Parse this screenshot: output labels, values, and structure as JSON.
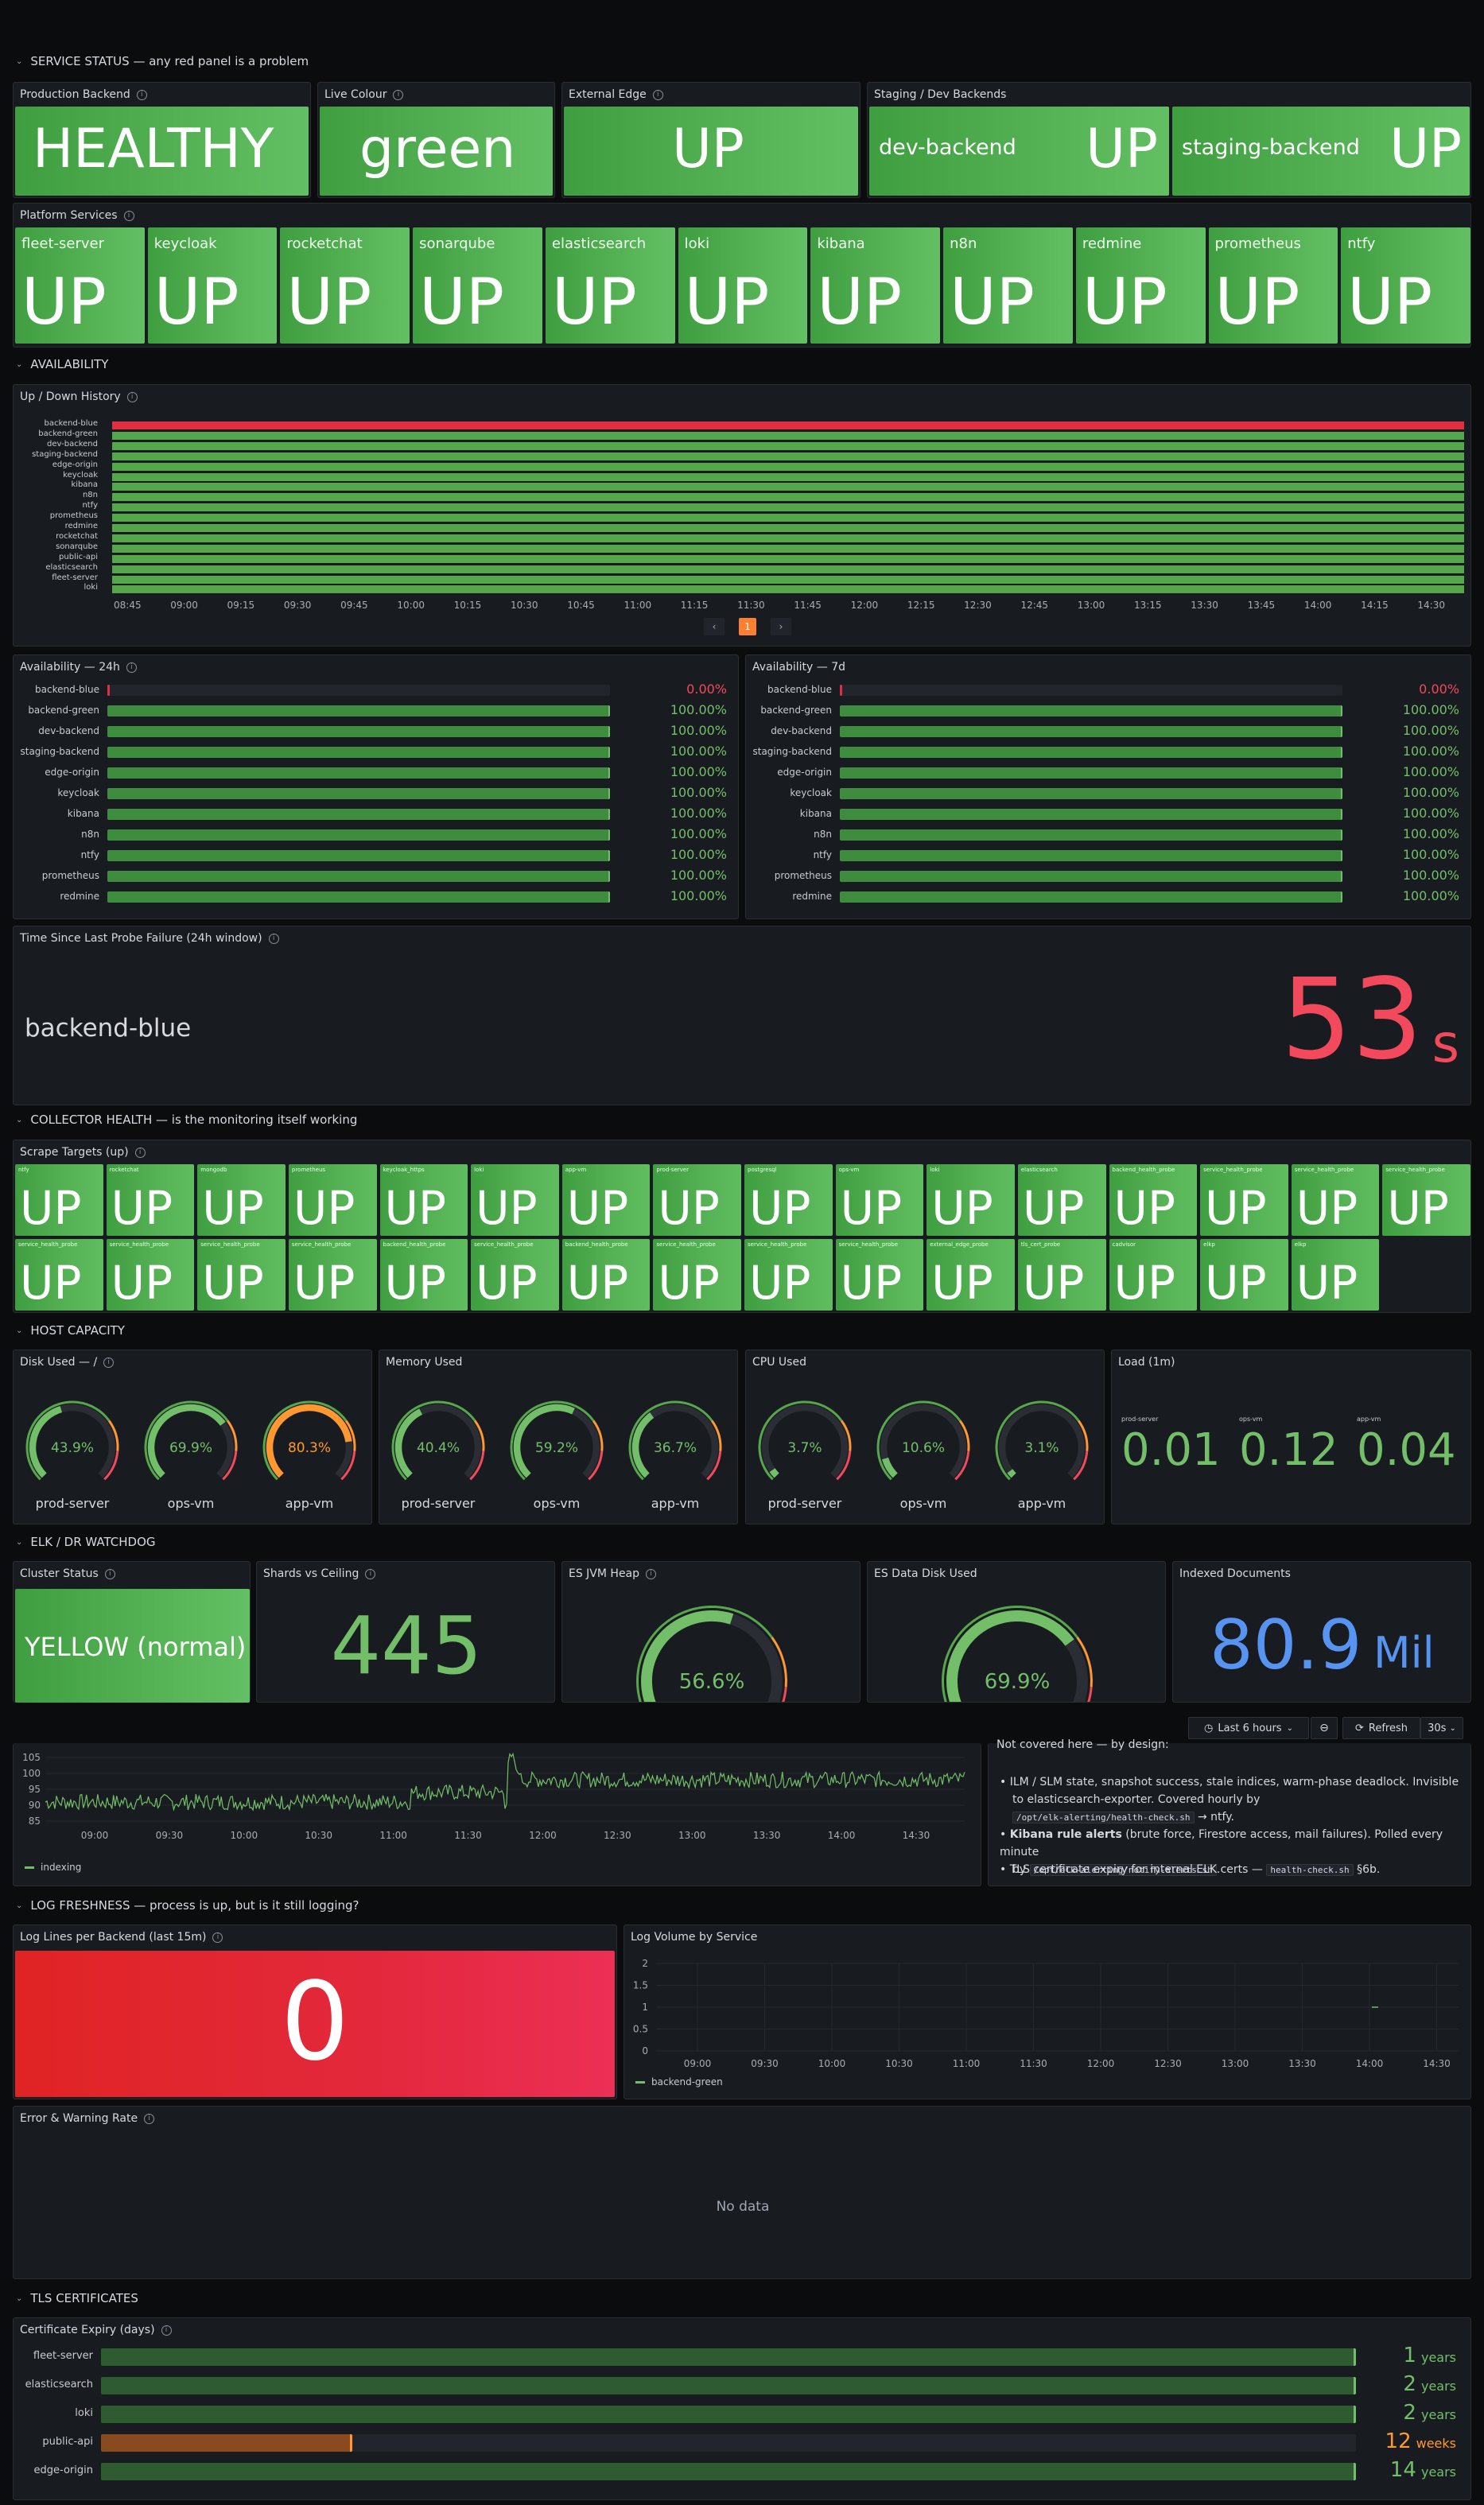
{
  "colors": {
    "green": "#56a64b",
    "red": "#e02f44",
    "orange": "#ff9830",
    "blue": "#5794f2",
    "panel": "#181b1f",
    "bg": "#0b0c0e"
  },
  "rows": {
    "service": "SERVICE STATUS — any red panel is a problem",
    "availability": "AVAILABILITY",
    "collector": "COLLECTOR HEALTH — is the monitoring itself working",
    "host": "HOST CAPACITY",
    "elk": "ELK / DR WATCHDOG",
    "log": "LOG FRESHNESS — process is up, but is it still logging?",
    "tls": "TLS CERTIFICATES"
  },
  "service": {
    "prod_title": "Production Backend",
    "prod_value": "HEALTHY",
    "live_title": "Live Colour",
    "live_value": "green",
    "edge_title": "External Edge",
    "edge_value": "UP",
    "staging_title": "Staging / Dev Backends",
    "staging": [
      {
        "name": "dev-backend",
        "value": "UP"
      },
      {
        "name": "staging-backend",
        "value": "UP"
      }
    ],
    "platform_title": "Platform Services",
    "platform": [
      {
        "name": "fleet-server",
        "value": "UP"
      },
      {
        "name": "keycloak",
        "value": "UP"
      },
      {
        "name": "rocketchat",
        "value": "UP"
      },
      {
        "name": "sonarqube",
        "value": "UP"
      },
      {
        "name": "elasticsearch",
        "value": "UP"
      },
      {
        "name": "loki",
        "value": "UP"
      },
      {
        "name": "kibana",
        "value": "UP"
      },
      {
        "name": "n8n",
        "value": "UP"
      },
      {
        "name": "redmine",
        "value": "UP"
      },
      {
        "name": "prometheus",
        "value": "UP"
      },
      {
        "name": "ntfy",
        "value": "UP"
      }
    ]
  },
  "updown": {
    "title": "Up / Down History",
    "series": [
      "backend-blue",
      "backend-green",
      "dev-backend",
      "staging-backend",
      "edge-origin",
      "keycloak",
      "kibana",
      "n8n",
      "ntfy",
      "prometheus",
      "redmine",
      "rocketchat",
      "sonarqube",
      "public-api",
      "elasticsearch",
      "fleet-server",
      "loki"
    ],
    "states": [
      "down",
      "up",
      "up",
      "up",
      "up",
      "up",
      "up",
      "up",
      "up",
      "up",
      "up",
      "up",
      "up",
      "up",
      "up",
      "up",
      "up"
    ],
    "times": [
      "08:45",
      "09:00",
      "09:15",
      "09:30",
      "09:45",
      "10:00",
      "10:15",
      "10:30",
      "10:45",
      "11:00",
      "11:15",
      "11:30",
      "11:45",
      "12:00",
      "12:15",
      "12:30",
      "12:45",
      "13:00",
      "13:15",
      "13:30",
      "13:45",
      "14:00",
      "14:15",
      "14:30"
    ],
    "page_prev": "‹",
    "page": "1",
    "page_next": "›"
  },
  "avail24": {
    "title": "Availability — 24h",
    "items": [
      {
        "name": "backend-blue",
        "value": "0.00%",
        "pct": 0
      },
      {
        "name": "backend-green",
        "value": "100.00%",
        "pct": 100
      },
      {
        "name": "dev-backend",
        "value": "100.00%",
        "pct": 100
      },
      {
        "name": "staging-backend",
        "value": "100.00%",
        "pct": 100
      },
      {
        "name": "edge-origin",
        "value": "100.00%",
        "pct": 100
      },
      {
        "name": "keycloak",
        "value": "100.00%",
        "pct": 100
      },
      {
        "name": "kibana",
        "value": "100.00%",
        "pct": 100
      },
      {
        "name": "n8n",
        "value": "100.00%",
        "pct": 100
      },
      {
        "name": "ntfy",
        "value": "100.00%",
        "pct": 100
      },
      {
        "name": "prometheus",
        "value": "100.00%",
        "pct": 100
      },
      {
        "name": "redmine",
        "value": "100.00%",
        "pct": 100
      }
    ]
  },
  "avail7": {
    "title": "Availability — 7d",
    "items": [
      {
        "name": "backend-blue",
        "value": "0.00%",
        "pct": 0
      },
      {
        "name": "backend-green",
        "value": "100.00%",
        "pct": 100
      },
      {
        "name": "dev-backend",
        "value": "100.00%",
        "pct": 100
      },
      {
        "name": "staging-backend",
        "value": "100.00%",
        "pct": 100
      },
      {
        "name": "edge-origin",
        "value": "100.00%",
        "pct": 100
      },
      {
        "name": "keycloak",
        "value": "100.00%",
        "pct": 100
      },
      {
        "name": "kibana",
        "value": "100.00%",
        "pct": 100
      },
      {
        "name": "n8n",
        "value": "100.00%",
        "pct": 100
      },
      {
        "name": "ntfy",
        "value": "100.00%",
        "pct": 100
      },
      {
        "name": "prometheus",
        "value": "100.00%",
        "pct": 100
      },
      {
        "name": "redmine",
        "value": "100.00%",
        "pct": 100
      }
    ]
  },
  "probe": {
    "title": "Time Since Last Probe Failure (24h window)",
    "name": "backend-blue",
    "value": "53",
    "unit": "s"
  },
  "scrape": {
    "title": "Scrape Targets (up)",
    "items": [
      {
        "name": "ntfy",
        "value": "UP"
      },
      {
        "name": "rocketchat",
        "value": "UP"
      },
      {
        "name": "mongodb",
        "value": "UP"
      },
      {
        "name": "prometheus",
        "value": "UP"
      },
      {
        "name": "keycloak_https",
        "value": "UP"
      },
      {
        "name": "loki",
        "value": "UP"
      },
      {
        "name": "app-vm",
        "value": "UP"
      },
      {
        "name": "prod-server",
        "value": "UP"
      },
      {
        "name": "postgresql",
        "value": "UP"
      },
      {
        "name": "ops-vm",
        "value": "UP"
      },
      {
        "name": "loki",
        "value": "UP"
      },
      {
        "name": "elasticsearch",
        "value": "UP"
      },
      {
        "name": "backend_health_probe",
        "value": "UP"
      },
      {
        "name": "service_health_probe",
        "value": "UP"
      },
      {
        "name": "service_health_probe",
        "value": "UP"
      },
      {
        "name": "service_health_probe",
        "value": "UP"
      },
      {
        "name": "service_health_probe",
        "value": "UP"
      },
      {
        "name": "service_health_probe",
        "value": "UP"
      },
      {
        "name": "service_health_probe",
        "value": "UP"
      },
      {
        "name": "service_health_probe",
        "value": "UP"
      },
      {
        "name": "backend_health_probe",
        "value": "UP"
      },
      {
        "name": "service_health_probe",
        "value": "UP"
      },
      {
        "name": "backend_health_probe",
        "value": "UP"
      },
      {
        "name": "service_health_probe",
        "value": "UP"
      },
      {
        "name": "service_health_probe",
        "value": "UP"
      },
      {
        "name": "service_health_probe",
        "value": "UP"
      },
      {
        "name": "external_edge_probe",
        "value": "UP"
      },
      {
        "name": "tls_cert_probe",
        "value": "UP"
      },
      {
        "name": "cadvisor",
        "value": "UP"
      },
      {
        "name": "elkp",
        "value": "UP"
      },
      {
        "name": "elkp",
        "value": "UP"
      }
    ]
  },
  "host": {
    "disk": {
      "title": "Disk Used — /",
      "gauges": [
        {
          "name": "prod-server",
          "value": "43.9%",
          "pct": 43.9
        },
        {
          "name": "ops-vm",
          "value": "69.9%",
          "pct": 69.9
        },
        {
          "name": "app-vm",
          "value": "80.3%",
          "pct": 80.3
        }
      ]
    },
    "mem": {
      "title": "Memory Used",
      "gauges": [
        {
          "name": "prod-server",
          "value": "40.4%",
          "pct": 40.4
        },
        {
          "name": "ops-vm",
          "value": "59.2%",
          "pct": 59.2
        },
        {
          "name": "app-vm",
          "value": "36.7%",
          "pct": 36.7
        }
      ]
    },
    "cpu": {
      "title": "CPU Used",
      "gauges": [
        {
          "name": "prod-server",
          "value": "3.7%",
          "pct": 3.7
        },
        {
          "name": "ops-vm",
          "value": "10.6%",
          "pct": 10.6
        },
        {
          "name": "app-vm",
          "value": "3.1%",
          "pct": 3.1
        }
      ]
    },
    "load": {
      "title": "Load (1m)",
      "items": [
        {
          "name": "prod-server",
          "value": "0.01"
        },
        {
          "name": "ops-vm",
          "value": "0.12"
        },
        {
          "name": "app-vm",
          "value": "0.04"
        }
      ]
    }
  },
  "elk": {
    "cluster_title": "Cluster Status",
    "cluster_value": "YELLOW (normal)",
    "shards_title": "Shards vs Ceiling",
    "shards_value": "445",
    "heap_title": "ES JVM Heap",
    "heap_value": "56.6%",
    "heap_pct": 56.6,
    "disk_title": "ES Data Disk Used",
    "disk_value": "69.9%",
    "disk_pct": 69.9,
    "docs_title": "Indexed Documents",
    "docs_value": "80.9",
    "docs_unit": "Mil"
  },
  "toolbar": {
    "time_range": "Last 6 hours",
    "refresh": "Refresh",
    "interval": "30s"
  },
  "indexing": {
    "yticks": [
      "105",
      "100",
      "95",
      "90",
      "85"
    ],
    "xticks": [
      "09:00",
      "09:30",
      "10:00",
      "10:30",
      "11:00",
      "11:30",
      "12:00",
      "12:30",
      "13:00",
      "13:30",
      "14:00",
      "14:30"
    ],
    "legend": "indexing"
  },
  "notes": {
    "heading": "Not covered here — by design:",
    "ilm_a": "ILM / SLM state, snapshot success, stale indices, warm-phase deadlock. Invisible",
    "ilm_b": "to elasticsearch-exporter. Covered hourly by",
    "ilm_code": "/opt/elk-alerting/health-check.sh",
    "ilm_c": "→ ntfy.",
    "kib_bold": "Kibana rule alerts",
    "kib_a": "(brute force, Firestore access, mail failures). Polled every minute",
    "kib_b": "by",
    "kib_code": "/opt/elk-alerting/notify-alerts.sh",
    "kib_c": ".",
    "tls_a": "TLS certificate expiry for internal ELK certs —",
    "tls_code": "health-check.sh",
    "tls_c": "§6b."
  },
  "log": {
    "lines_title": "Log Lines per Backend (last 15m)",
    "lines_value": "0",
    "volume_title": "Log Volume by Service",
    "volume_yticks": [
      "2",
      "1.5",
      "1",
      "0.5",
      "0"
    ],
    "volume_xticks": [
      "09:00",
      "09:30",
      "10:00",
      "10:30",
      "11:00",
      "11:30",
      "12:00",
      "12:30",
      "13:00",
      "13:30",
      "14:00",
      "14:30"
    ],
    "volume_legend": "backend-green",
    "error_title": "Error & Warning Rate",
    "error_empty": "No data"
  },
  "certs": {
    "title": "Certificate Expiry (days)",
    "items": [
      {
        "name": "fleet-server",
        "value": "1",
        "unit": "years",
        "pct": 100,
        "color": "#56a64b"
      },
      {
        "name": "elasticsearch",
        "value": "2",
        "unit": "years",
        "pct": 100,
        "color": "#56a64b"
      },
      {
        "name": "loki",
        "value": "2",
        "unit": "years",
        "pct": 100,
        "color": "#56a64b"
      },
      {
        "name": "public-api",
        "value": "12",
        "unit": "weeks",
        "pct": 20,
        "color": "#ff9830"
      },
      {
        "name": "edge-origin",
        "value": "14",
        "unit": "years",
        "pct": 100,
        "color": "#56a64b"
      }
    ]
  }
}
